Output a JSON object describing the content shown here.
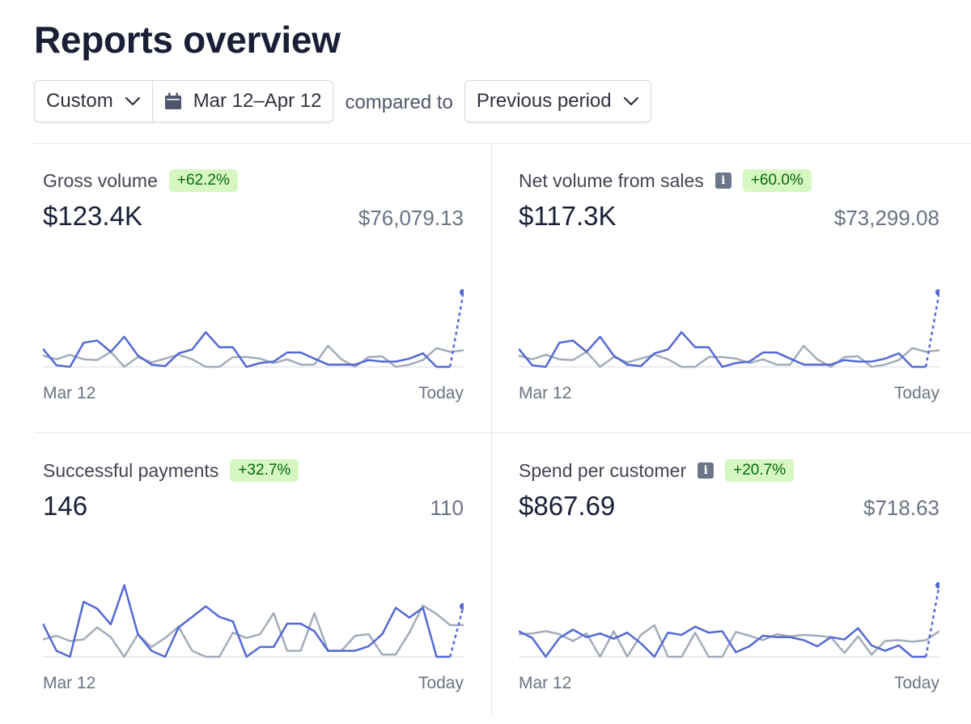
{
  "page": {
    "title": "Reports overview"
  },
  "filters": {
    "range_label": "Custom",
    "date_range": "Mar 12–Apr 12",
    "compared_to": "compared to",
    "comparison_label": "Previous period"
  },
  "colors": {
    "current": "#5469d4",
    "previous": "#a3acb9",
    "badge_bg": "#d7f7c2",
    "badge_text": "#05690d"
  },
  "cards": [
    {
      "title": "Gross volume",
      "info": false,
      "change": "+62.2%",
      "value": "$123.4K",
      "previous_value": "$76,079.13",
      "axis_start": "Mar 12",
      "axis_end": "Today"
    },
    {
      "title": "Net volume from sales",
      "info": true,
      "change": "+60.0%",
      "value": "$117.3K",
      "previous_value": "$73,299.08",
      "axis_start": "Mar 12",
      "axis_end": "Today"
    },
    {
      "title": "Successful payments",
      "info": false,
      "change": "+32.7%",
      "value": "146",
      "previous_value": "110",
      "axis_start": "Mar 12",
      "axis_end": "Today"
    },
    {
      "title": "Spend per customer",
      "info": true,
      "change": "+20.7%",
      "value": "$867.69",
      "previous_value": "$718.63",
      "axis_start": "Mar 12",
      "axis_end": "Today"
    }
  ],
  "chart_data": [
    {
      "type": "line",
      "title": "Gross volume",
      "x": [
        "Mar 12",
        "",
        "",
        "",
        "",
        "",
        "",
        "",
        "",
        "",
        "",
        "",
        "",
        "",
        "",
        "",
        "",
        "",
        "",
        "",
        "",
        "",
        "",
        "",
        "",
        "",
        "",
        "",
        "",
        "",
        "Today",
        "Today"
      ],
      "ylim": [
        0,
        10
      ],
      "series": [
        {
          "values": [
            2.4,
            0.2,
            0.0,
            3.2,
            3.5,
            2.0,
            4.0,
            1.5,
            0.3,
            0.1,
            1.8,
            2.3,
            4.6,
            2.6,
            2.6,
            0.0,
            0.5,
            0.7,
            1.9,
            1.9,
            1.1,
            0.3,
            0.3,
            0.3,
            0.9,
            0.7,
            0.7,
            1.1,
            1.8,
            0.0,
            0.0,
            10.0
          ],
          "dashed_last_segment": true
        },
        {
          "values": [
            1.5,
            1.0,
            1.6,
            1.0,
            0.9,
            2.0,
            0.0,
            1.3,
            0.6,
            1.1,
            1.6,
            1.0,
            0.0,
            0.0,
            1.3,
            1.3,
            1.1,
            0.5,
            1.0,
            0.3,
            0.3,
            2.8,
            1.0,
            0.0,
            1.3,
            1.4,
            0.0,
            0.3,
            0.9,
            2.5,
            2.0,
            2.2
          ]
        }
      ]
    },
    {
      "type": "line",
      "title": "Net volume from sales",
      "x": [
        "Mar 12",
        "",
        "",
        "",
        "",
        "",
        "",
        "",
        "",
        "",
        "",
        "",
        "",
        "",
        "",
        "",
        "",
        "",
        "",
        "",
        "",
        "",
        "",
        "",
        "",
        "",
        "",
        "",
        "",
        "",
        "Today",
        "Today"
      ],
      "ylim": [
        0,
        10
      ],
      "series": [
        {
          "values": [
            2.4,
            0.2,
            0.0,
            3.2,
            3.5,
            2.0,
            4.0,
            1.5,
            0.3,
            0.1,
            1.8,
            2.3,
            4.6,
            2.6,
            2.6,
            0.0,
            0.5,
            0.7,
            1.9,
            1.9,
            1.1,
            0.3,
            0.3,
            0.3,
            0.9,
            0.7,
            0.7,
            1.1,
            1.8,
            0.0,
            0.0,
            10.0
          ],
          "dashed_last_segment": true
        },
        {
          "values": [
            1.5,
            1.0,
            1.6,
            1.0,
            0.9,
            2.0,
            0.0,
            1.3,
            0.6,
            1.1,
            1.6,
            1.0,
            0.0,
            0.0,
            1.3,
            1.3,
            1.1,
            0.5,
            1.0,
            0.3,
            0.3,
            2.8,
            1.0,
            0.0,
            1.3,
            1.4,
            0.0,
            0.3,
            0.9,
            2.5,
            2.0,
            2.2
          ]
        }
      ]
    },
    {
      "type": "line",
      "title": "Successful payments",
      "x": [
        "Mar 12",
        "",
        "",
        "",
        "",
        "",
        "",
        "",
        "",
        "",
        "",
        "",
        "",
        "",
        "",
        "",
        "",
        "",
        "",
        "",
        "",
        "",
        "",
        "",
        "",
        "",
        "",
        "",
        "",
        "",
        "Today",
        "Today"
      ],
      "ylim": [
        0,
        10
      ],
      "series": [
        {
          "values": [
            4.4,
            0.8,
            0.0,
            7.3,
            6.4,
            4.3,
            9.5,
            3.0,
            0.8,
            0.0,
            3.9,
            5.3,
            6.7,
            5.3,
            4.7,
            0.0,
            1.3,
            1.3,
            4.4,
            4.4,
            3.4,
            0.8,
            0.8,
            0.8,
            1.4,
            3.0,
            6.5,
            5.2,
            6.5,
            0.0,
            0.0,
            6.8
          ],
          "dashed_last_segment": true
        },
        {
          "values": [
            2.3,
            2.8,
            2.1,
            2.3,
            3.9,
            2.6,
            0.0,
            3.0,
            1.3,
            2.5,
            4.0,
            0.8,
            0.0,
            0.0,
            3.2,
            2.5,
            3.0,
            5.8,
            0.8,
            0.8,
            5.8,
            0.8,
            0.8,
            2.8,
            3.0,
            0.3,
            0.3,
            3.2,
            6.8,
            5.7,
            4.2,
            4.2
          ]
        }
      ]
    },
    {
      "type": "line",
      "title": "Spend per customer",
      "x": [
        "Mar 12",
        "",
        "",
        "",
        "",
        "",
        "",
        "",
        "",
        "",
        "",
        "",
        "",
        "",
        "",
        "",
        "",
        "",
        "",
        "",
        "",
        "",
        "",
        "",
        "",
        "",
        "",
        "",
        "",
        "",
        "Today",
        "Today"
      ],
      "ylim": [
        0,
        10
      ],
      "series": [
        {
          "values": [
            3.4,
            2.5,
            0.0,
            2.5,
            3.6,
            2.6,
            3.1,
            2.4,
            3.2,
            1.8,
            0.0,
            3.2,
            2.9,
            4.0,
            3.2,
            3.4,
            0.6,
            1.4,
            2.8,
            2.6,
            2.6,
            2.2,
            1.4,
            2.6,
            2.3,
            3.8,
            1.5,
            0.8,
            1.5,
            0.0,
            0.0,
            9.6
          ],
          "dashed_last_segment": true
        },
        {
          "values": [
            3.0,
            3.1,
            3.4,
            3.0,
            2.1,
            3.1,
            0.0,
            3.4,
            0.0,
            2.9,
            4.2,
            0.0,
            0.0,
            3.2,
            0.0,
            0.0,
            3.3,
            2.8,
            2.2,
            3.0,
            2.7,
            2.9,
            2.8,
            2.6,
            0.5,
            2.7,
            0.3,
            2.1,
            2.2,
            2.0,
            2.2,
            3.4
          ]
        }
      ]
    }
  ]
}
